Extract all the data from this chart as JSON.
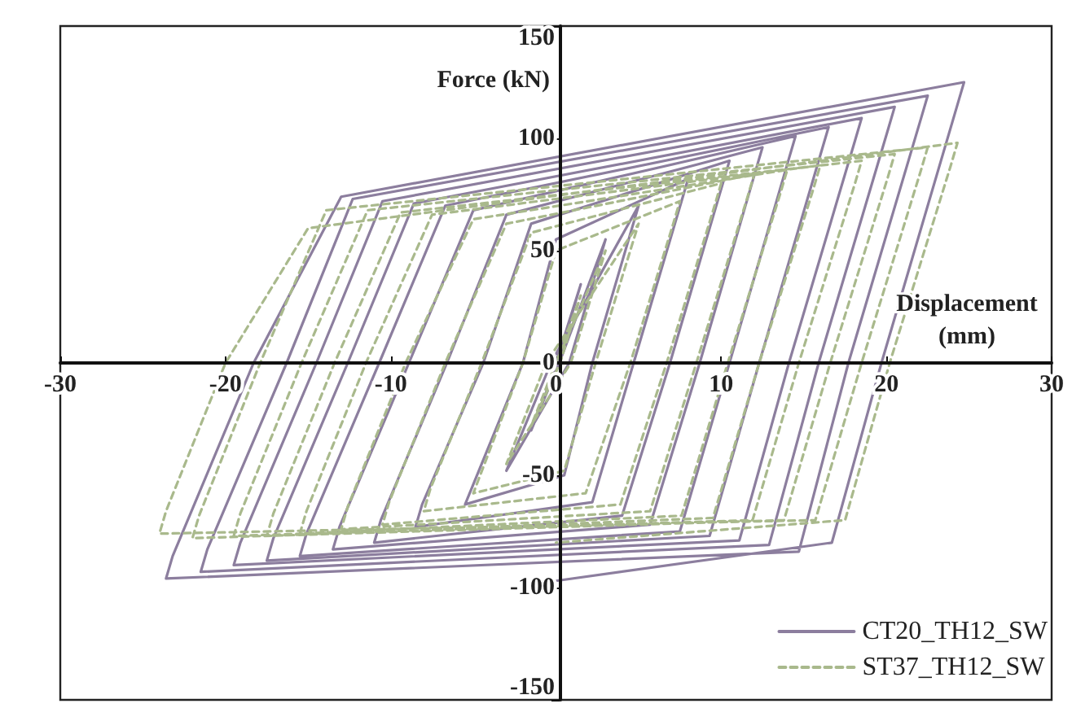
{
  "chart_data": {
    "type": "line",
    "xlabel": "Displacement (mm)",
    "ylabel": "Force (kN)",
    "xlim": [
      -30,
      30
    ],
    "xticks": [
      -30,
      -20,
      -10,
      0,
      10,
      20,
      30
    ],
    "ylim": [
      -150,
      150
    ],
    "yticks": [
      -150,
      -100,
      -50,
      0,
      50,
      100,
      150
    ],
    "grid": false,
    "legend": "bottom right",
    "marker": "none",
    "series": [
      {
        "name": "CT20_TH12_SW",
        "color": "#8c7e9e",
        "line_style": "solid",
        "x": [
          0,
          1.5,
          0.1,
          -1.5,
          0.2,
          3,
          0.8,
          -3,
          -0.3,
          5,
          2.2,
          0.5,
          -5.5,
          -2,
          0,
          8,
          7.6,
          4.7,
          2.2,
          -8.5,
          -8.1,
          -4.4,
          -1.5,
          10.5,
          10.1,
          6.9,
          4,
          -11,
          -10.6,
          -6.6,
          -3,
          12.5,
          12.1,
          8.7,
          5.7,
          -13.5,
          -13.1,
          -8.9,
          -5,
          14.5,
          14.1,
          10.5,
          7.5,
          -15.5,
          -15.1,
          -10.7,
          -6.7,
          16.5,
          16.1,
          12.3,
          9.3,
          -17.5,
          -17.1,
          -12.6,
          -8.6,
          18.5,
          18.1,
          14.1,
          11.1,
          -19.5,
          -19.1,
          -14.5,
          -10.5,
          20.5,
          20.1,
          15.9,
          12.9,
          -21.5,
          -21.1,
          -16.3,
          -12.3,
          22.5,
          22.1,
          17.7,
          14.7,
          -23.6,
          -23.2,
          -18.3,
          -13,
          24.7,
          24.3,
          19.7,
          16.7,
          0
        ],
        "values": [
          0,
          35,
          0,
          -30,
          0,
          55,
          0,
          -48,
          0,
          70,
          0,
          -50,
          -63,
          0,
          55,
          82,
          72,
          0,
          -62,
          -73,
          -63,
          0,
          62,
          90,
          80,
          0,
          -68,
          -80,
          -70,
          0,
          66,
          96,
          86,
          0,
          -72,
          -83,
          -73,
          0,
          68,
          101,
          91,
          0,
          -75,
          -86,
          -76,
          0,
          70,
          105,
          95,
          0,
          -77,
          -88,
          -78,
          0,
          71,
          109,
          99,
          0,
          -79,
          -90,
          -80,
          0,
          72,
          114,
          104,
          0,
          -81,
          -93,
          -83,
          0,
          73,
          119,
          109,
          0,
          -84,
          -96,
          -86,
          0,
          74,
          125,
          115,
          0,
          -80,
          -97
        ]
      },
      {
        "name": "ST37_TH12_SW",
        "color": "#a9b98c",
        "line_style": "dashed",
        "x": [
          0,
          1.5,
          0.25,
          -1.5,
          0,
          3,
          0.9,
          -3,
          -0.6,
          5,
          2.4,
          0.5,
          -5,
          -2,
          0,
          7.5,
          7.1,
          4.5,
          1.8,
          -8,
          -7.6,
          -4.5,
          -1.5,
          10,
          9.6,
          6.7,
          3.9,
          -10.5,
          -10.1,
          -6.7,
          -3,
          12,
          11.6,
          8.5,
          5.7,
          -13,
          -12.6,
          -9.1,
          -5,
          14,
          13.6,
          10.4,
          7.6,
          -15.5,
          -15.1,
          -11.5,
          -7.5,
          16,
          15.6,
          12.3,
          9.5,
          -17.5,
          -17.1,
          -13.4,
          -9.4,
          18.5,
          18.1,
          14.7,
          11.9,
          -19.5,
          -19.1,
          -15.4,
          -11.4,
          20.5,
          20.1,
          16.6,
          13.8,
          -22,
          -21.6,
          -17.9,
          -13.9,
          22.5,
          22.1,
          18.5,
          15.7,
          -24,
          -23.6,
          -20,
          -15,
          24.3,
          23.9,
          20.2,
          17.5,
          0
        ],
        "values": [
          0,
          30,
          0,
          -28,
          0,
          50,
          0,
          -45,
          0,
          62,
          0,
          -48,
          -58,
          0,
          50,
          72,
          62,
          0,
          -58,
          -66,
          -56,
          0,
          58,
          80,
          70,
          0,
          -63,
          -72,
          -62,
          0,
          62,
          84,
          74,
          0,
          -66,
          -74,
          -64,
          0,
          64,
          86,
          76,
          0,
          -68,
          -76,
          -66,
          0,
          66,
          88,
          78,
          0,
          -69,
          -77,
          -67,
          0,
          67,
          90,
          80,
          0,
          -70,
          -77,
          -67,
          0,
          68,
          93,
          83,
          0,
          -70,
          -78,
          -68,
          0,
          68,
          96,
          86,
          0,
          -70,
          -76,
          -66,
          0,
          60,
          98,
          88,
          0,
          -70,
          -80
        ]
      }
    ]
  }
}
